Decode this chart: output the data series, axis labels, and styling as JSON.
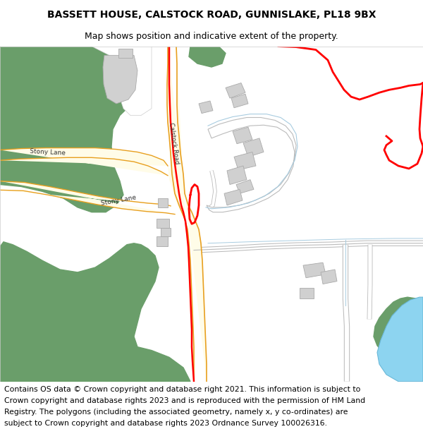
{
  "title_line1": "BASSETT HOUSE, CALSTOCK ROAD, GUNNISLAKE, PL18 9BX",
  "title_line2": "Map shows position and indicative extent of the property.",
  "footer_text": "Contains OS data © Crown copyright and database right 2021. This information is subject to Crown copyright and database rights 2023 and is reproduced with the permission of HM Land Registry. The polygons (including the associated geometry, namely x, y co-ordinates) are subject to Crown copyright and database rights 2023 Ordnance Survey 100026316.",
  "bg_color": "#ffffff",
  "map_bg": "#ffffff",
  "green_color": "#6a9e6a",
  "road_fill": "#fffce8",
  "road_edge": "#e8a020",
  "red_boundary": "#ff0000",
  "water_color": "#8dd4f0",
  "water_edge": "#6ab8d8",
  "light_blue_line": "#a8cce0",
  "gray_road_fill": "#ffffff",
  "gray_road_edge": "#bbbbbb",
  "building_color": "#d0d0d0",
  "building_edge": "#aaaaaa",
  "title_fontsize": 10,
  "subtitle_fontsize": 9,
  "footer_fontsize": 7.8,
  "label_fontsize": 6.5
}
